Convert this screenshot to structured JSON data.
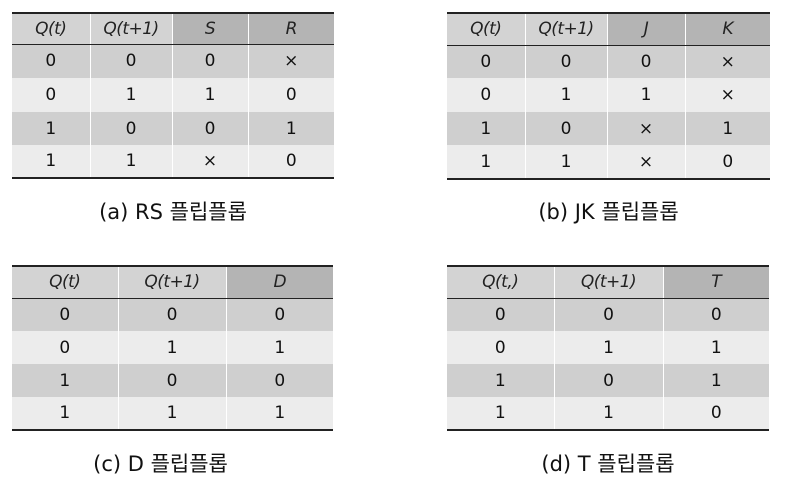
{
  "tables": [
    {
      "headers": [
        "Q(t)",
        "Q(t+1)",
        "S",
        "R"
      ],
      "rows": [
        [
          "0",
          "0",
          "0",
          "×"
        ],
        [
          "0",
          "1",
          "1",
          "0"
        ],
        [
          "1",
          "0",
          "0",
          "1"
        ],
        [
          "1",
          "1",
          "×",
          "0"
        ]
      ],
      "caption": "(a) RS 플립플롭"
    },
    {
      "headers": [
        "Q(t)",
        "Q(t+1)",
        "J",
        "K"
      ],
      "rows": [
        [
          "0",
          "0",
          "0",
          "×"
        ],
        [
          "0",
          "1",
          "1",
          "×"
        ],
        [
          "1",
          "0",
          "×",
          "1"
        ],
        [
          "1",
          "1",
          "×",
          "0"
        ]
      ],
      "caption": "(b) JK 플립플롭"
    },
    {
      "headers": [
        "Q(t)",
        "Q(t+1)",
        "D"
      ],
      "rows": [
        [
          "0",
          "0",
          "0"
        ],
        [
          "0",
          "1",
          "1"
        ],
        [
          "1",
          "0",
          "0"
        ],
        [
          "1",
          "1",
          "1"
        ]
      ],
      "caption": "(c) D 플립플롭"
    },
    {
      "headers": [
        "Q(t,)",
        "Q(t+1)",
        "T"
      ],
      "rows": [
        [
          "0",
          "0",
          "0"
        ],
        [
          "0",
          "1",
          "1"
        ],
        [
          "1",
          "0",
          "1"
        ],
        [
          "1",
          "1",
          "0"
        ]
      ],
      "caption": "(d) T 플립플롭"
    }
  ]
}
